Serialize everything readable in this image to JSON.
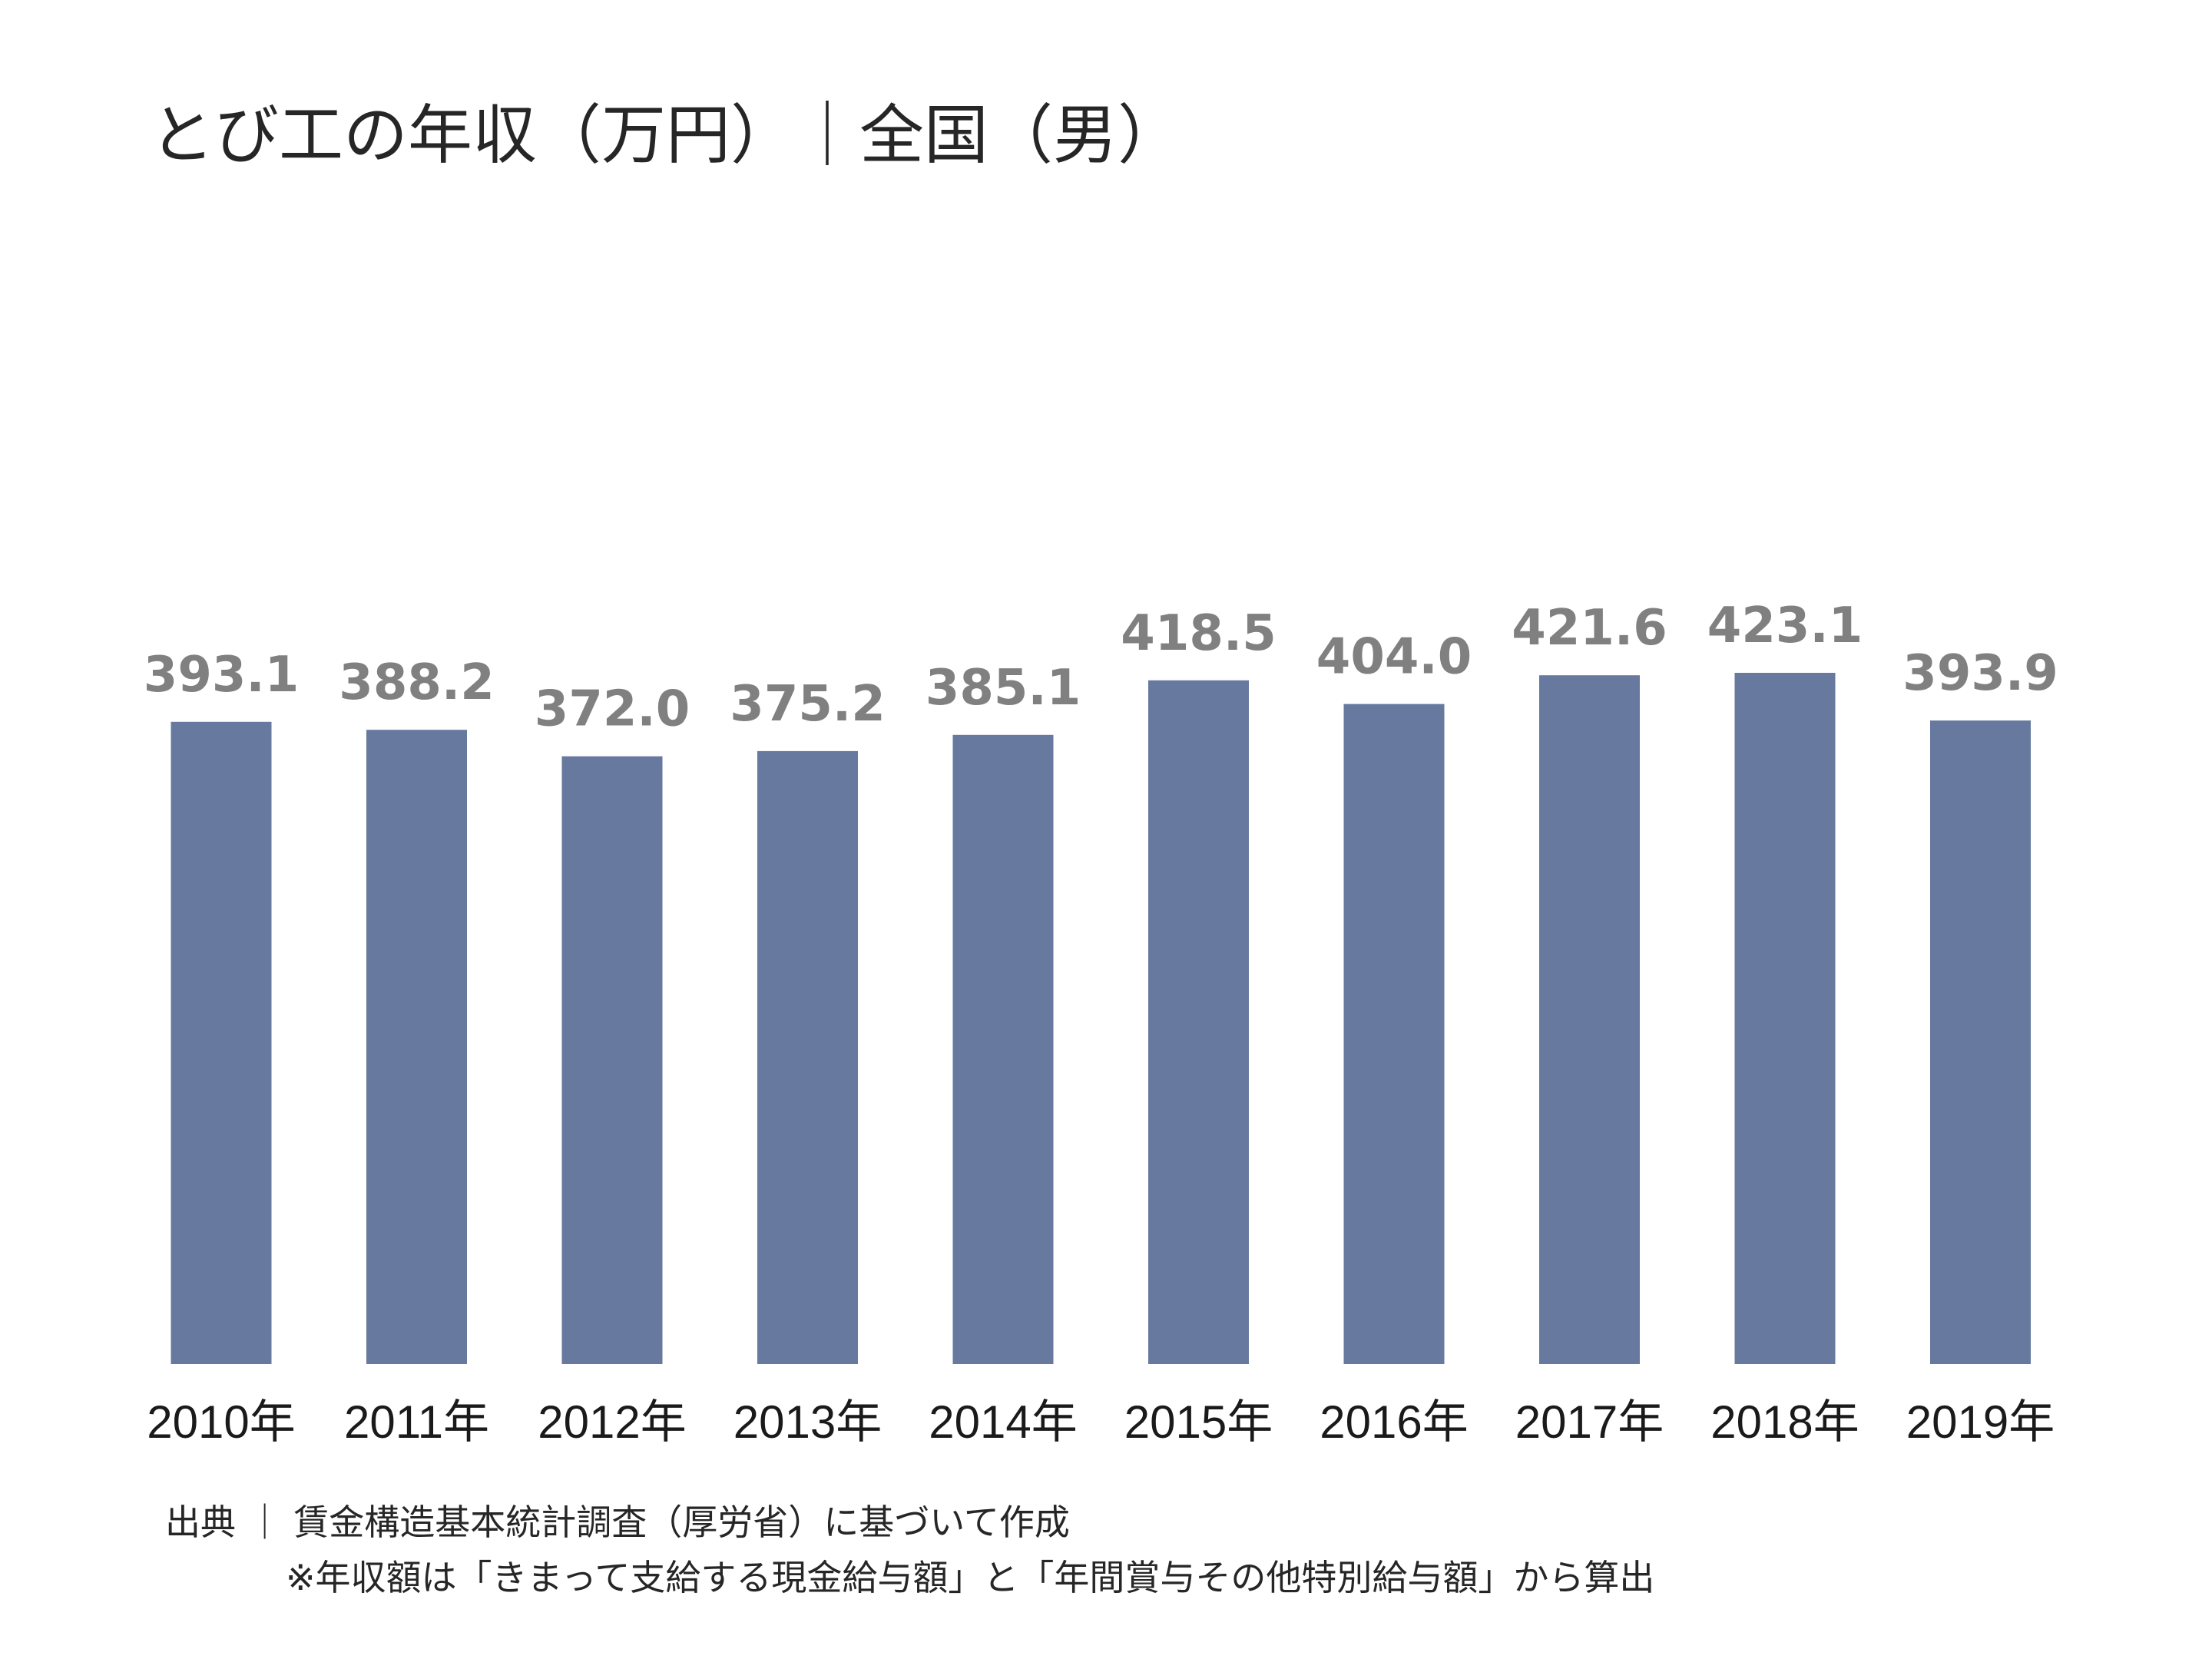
{
  "chart_data": {
    "type": "bar",
    "title": "とび工の年収（万円）｜全国（男）",
    "categories": [
      "2010年",
      "2011年",
      "2012年",
      "2013年",
      "2014年",
      "2015年",
      "2016年",
      "2017年",
      "2018年",
      "2019年"
    ],
    "values": [
      393.1,
      388.2,
      372.0,
      375.2,
      385.1,
      418.5,
      404.0,
      421.6,
      423.1,
      393.9
    ],
    "value_labels": [
      "393.1",
      "388.2",
      "372.0",
      "375.2",
      "385.1",
      "418.5",
      "404.0",
      "421.6",
      "423.1",
      "393.9"
    ],
    "ylim": [
      0,
      423.1
    ],
    "bar_color": "#67799f",
    "value_label_color": "#808080",
    "grid": false,
    "legend": "none",
    "xlabel": "",
    "ylabel": ""
  },
  "source": {
    "line1": "出典 ｜ 賃金構造基本統計調査（厚労省）に基づいて作成",
    "line2": "※年収額は「きまって支給する現金給与額」と「年間賞与その他特別給与額」から算出"
  }
}
